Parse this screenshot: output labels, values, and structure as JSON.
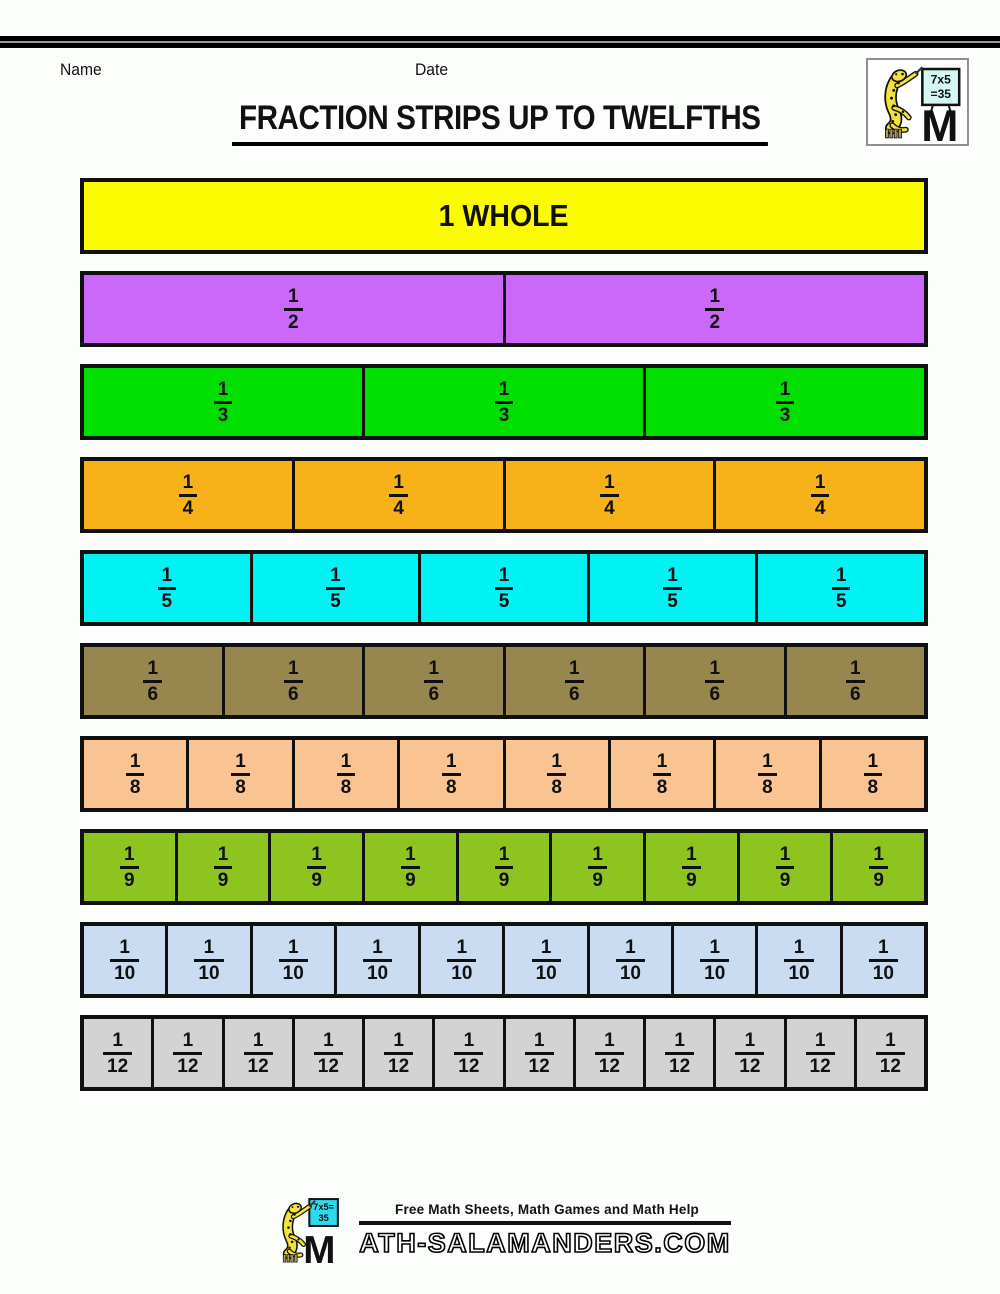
{
  "page": {
    "name_label": "Name",
    "date_label": "Date",
    "title": "FRACTION STRIPS UP TO TWELFTHS"
  },
  "corner_logo": {
    "board_line1": "7x5",
    "board_line2": "=35",
    "letter": "M"
  },
  "strips": [
    {
      "type": "whole",
      "label": "1 WHOLE",
      "count": 1,
      "color": "#FCFC00"
    },
    {
      "type": "fraction",
      "numerator": "1",
      "denominator": "2",
      "count": 2,
      "color": "#CB68FA"
    },
    {
      "type": "fraction",
      "numerator": "1",
      "denominator": "3",
      "count": 3,
      "color": "#01DF01"
    },
    {
      "type": "fraction",
      "numerator": "1",
      "denominator": "4",
      "count": 4,
      "color": "#F7B119"
    },
    {
      "type": "fraction",
      "numerator": "1",
      "denominator": "5",
      "count": 5,
      "color": "#00F2F2"
    },
    {
      "type": "fraction",
      "numerator": "1",
      "denominator": "6",
      "count": 6,
      "color": "#97874E"
    },
    {
      "type": "fraction",
      "numerator": "1",
      "denominator": "8",
      "count": 8,
      "color": "#F9C392"
    },
    {
      "type": "fraction",
      "numerator": "1",
      "denominator": "9",
      "count": 9,
      "color": "#8EC41F"
    },
    {
      "type": "fraction",
      "numerator": "1",
      "denominator": "10",
      "count": 10,
      "color": "#C9DCF2"
    },
    {
      "type": "fraction",
      "numerator": "1",
      "denominator": "12",
      "count": 12,
      "color": "#D3D3D3"
    }
  ],
  "footer": {
    "tagline": "Free Math Sheets, Math Games and Math Help",
    "board_line1": "7x5=",
    "board_line2": "35",
    "site_m": "M",
    "site_rest": "ATH-SALAMANDERS.COM"
  }
}
